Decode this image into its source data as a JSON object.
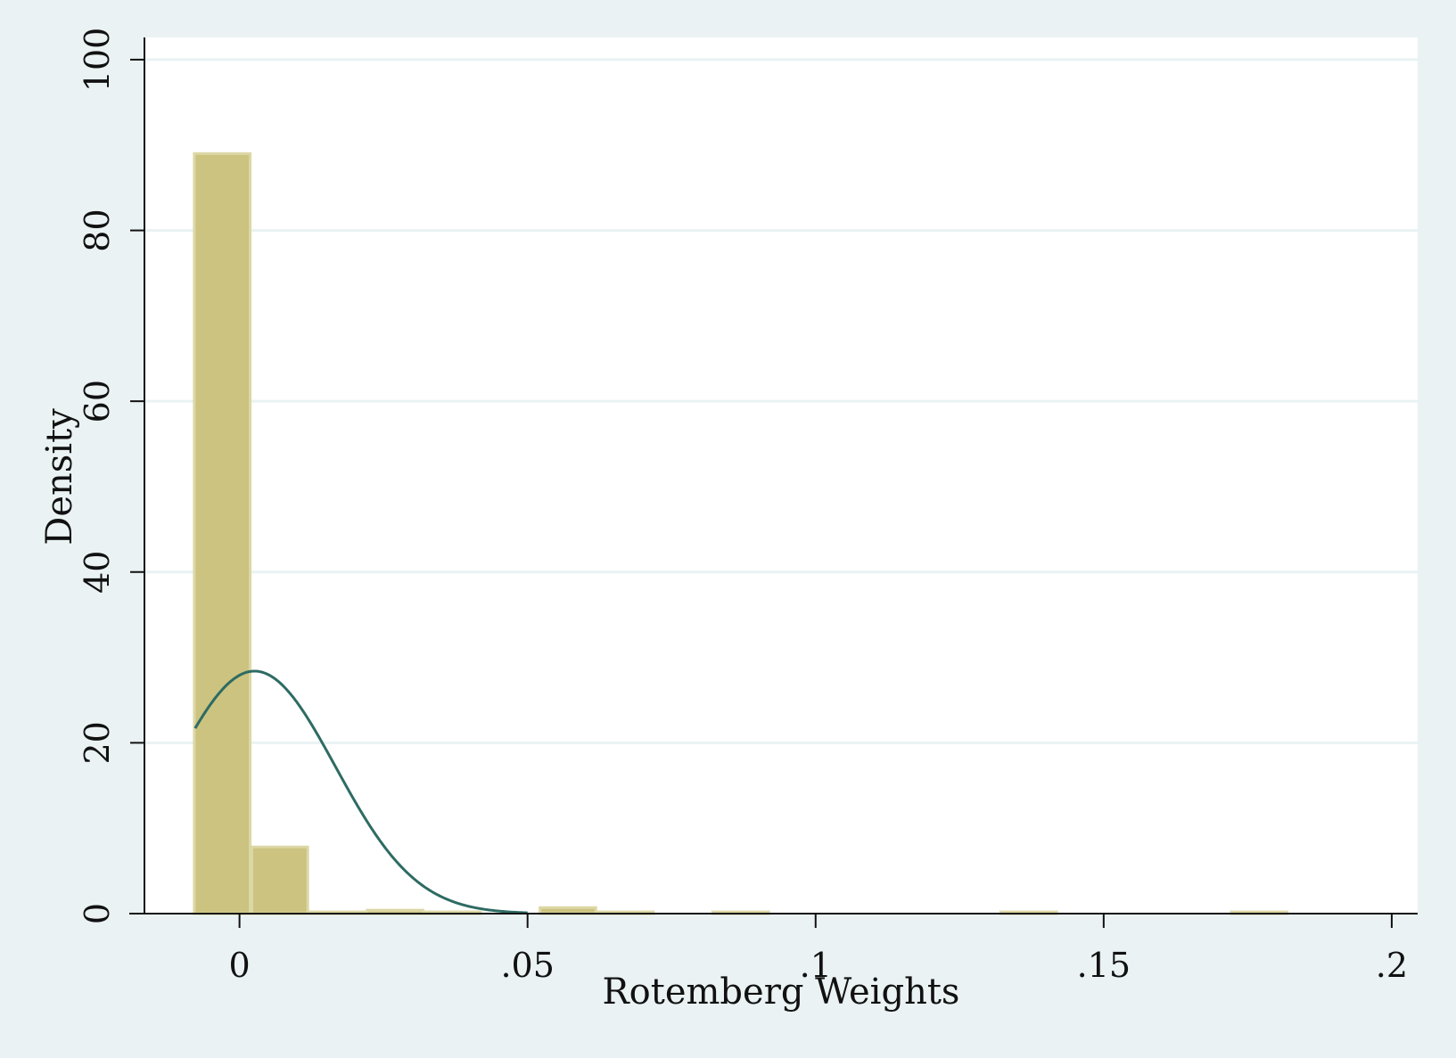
{
  "chart_data": {
    "type": "bar",
    "xlabel": "Rotemberg Weights",
    "ylabel": "Density",
    "xlim": [
      -0.0165,
      0.2045
    ],
    "ylim": [
      0,
      102.6
    ],
    "x_ticks": [
      {
        "value": 0,
        "label": "0"
      },
      {
        "value": 0.05,
        "label": ".05"
      },
      {
        "value": 0.1,
        "label": ".1"
      },
      {
        "value": 0.15,
        "label": ".15"
      },
      {
        "value": 0.2,
        "label": ".2"
      }
    ],
    "y_ticks": [
      {
        "value": 0,
        "label": "0"
      },
      {
        "value": 20,
        "label": "20"
      },
      {
        "value": 40,
        "label": "40"
      },
      {
        "value": 60,
        "label": "60"
      },
      {
        "value": 80,
        "label": "80"
      },
      {
        "value": 100,
        "label": "100"
      }
    ],
    "grid": true,
    "bin_width": 0.01,
    "series": [
      {
        "type": "histogram",
        "bins": [
          {
            "x0": -0.008,
            "x1": 0.002,
            "density": 89
          },
          {
            "x0": 0.002,
            "x1": 0.012,
            "density": 7.8
          },
          {
            "x0": 0.012,
            "x1": 0.022,
            "density": 0.2
          },
          {
            "x0": 0.022,
            "x1": 0.032,
            "density": 0.4
          },
          {
            "x0": 0.032,
            "x1": 0.042,
            "density": 0.2
          },
          {
            "x0": 0.052,
            "x1": 0.062,
            "density": 0.7
          },
          {
            "x0": 0.062,
            "x1": 0.072,
            "density": 0.2
          },
          {
            "x0": 0.082,
            "x1": 0.092,
            "density": 0.2
          },
          {
            "x0": 0.132,
            "x1": 0.142,
            "density": 0.2
          },
          {
            "x0": 0.172,
            "x1": 0.182,
            "density": 0.2
          }
        ]
      },
      {
        "type": "line",
        "curve": "normal density",
        "mean": 0.0026,
        "sd": 0.01405,
        "x_range": [
          -0.0077,
          0.05
        ]
      }
    ],
    "colors": {
      "background": "#eaf2f3",
      "plot_background": "#ffffff",
      "bar_fill": "#cbc37f",
      "bar_outline": "#dcd7a5",
      "curve": "#2e6b63",
      "grid": "#eaf2f3",
      "axis": "#111111"
    }
  }
}
